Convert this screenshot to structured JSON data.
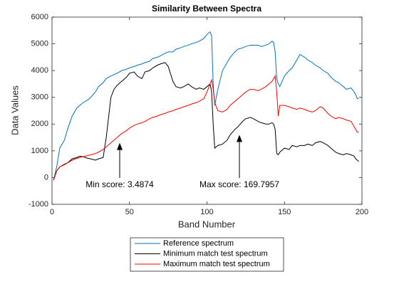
{
  "chart_data": {
    "type": "line",
    "title": "Similarity Between Spectra",
    "xlabel": "Band Number",
    "ylabel": "Data Values",
    "xlim": [
      0,
      200
    ],
    "xticks": [
      0,
      50,
      100,
      150,
      200
    ],
    "ylim": [
      -1000,
      6000
    ],
    "yticks": [
      -1000,
      0,
      1000,
      2000,
      3000,
      4000,
      5000,
      6000
    ],
    "annotations": [
      "Min score: 3.4874",
      "Max score: 169.7957"
    ],
    "x": [
      1,
      3,
      5,
      8,
      10,
      13,
      16,
      18,
      20,
      23,
      25,
      28,
      30,
      33,
      35,
      38,
      40,
      42,
      45,
      48,
      50,
      53,
      55,
      58,
      60,
      63,
      65,
      68,
      70,
      73,
      75,
      78,
      80,
      83,
      85,
      88,
      90,
      93,
      95,
      98,
      100,
      102,
      103,
      104,
      105,
      107,
      110,
      113,
      115,
      118,
      120,
      123,
      125,
      128,
      130,
      133,
      135,
      138,
      140,
      142,
      143,
      144,
      145,
      146,
      147,
      150,
      153,
      155,
      158,
      160,
      163,
      165,
      168,
      170,
      173,
      175,
      178,
      180,
      183,
      185,
      188,
      190,
      193,
      195,
      196,
      197,
      198
    ],
    "series": [
      {
        "name": "Reference spectrum",
        "color": "#0072bd",
        "values": [
          -100,
          400,
          1100,
          1400,
          1800,
          2300,
          2600,
          2700,
          2800,
          2900,
          3000,
          3200,
          3400,
          3550,
          3700,
          3800,
          3850,
          3900,
          4000,
          4050,
          4100,
          4150,
          4200,
          4250,
          4300,
          4350,
          4450,
          4500,
          4550,
          4650,
          4700,
          4700,
          4800,
          4850,
          4900,
          4950,
          5000,
          5050,
          5100,
          5200,
          5350,
          5450,
          5300,
          3500,
          2700,
          3300,
          4000,
          4300,
          4500,
          4700,
          4800,
          4850,
          4900,
          4950,
          4950,
          4950,
          4900,
          4950,
          5000,
          5100,
          5050,
          4700,
          3700,
          3500,
          3400,
          3800,
          4000,
          4100,
          4400,
          4600,
          4500,
          4400,
          4300,
          4200,
          4100,
          4000,
          3900,
          3750,
          3600,
          3550,
          3400,
          3300,
          3350,
          3200,
          3100,
          2950,
          2950
        ]
      },
      {
        "name": "Minimum match test spectrum",
        "color": "#000000",
        "values": [
          -100,
          250,
          400,
          500,
          550,
          700,
          750,
          800,
          780,
          720,
          700,
          650,
          700,
          750,
          1500,
          3000,
          3300,
          3450,
          3600,
          3750,
          3900,
          3950,
          3800,
          3700,
          3950,
          4000,
          4100,
          4200,
          4250,
          4300,
          4150,
          3600,
          3400,
          3350,
          3400,
          3500,
          3400,
          3300,
          3350,
          3300,
          3400,
          3500,
          3200,
          2000,
          1100,
          1200,
          1250,
          1400,
          1600,
          1800,
          1900,
          2100,
          2200,
          2250,
          2200,
          2100,
          2050,
          2000,
          2000,
          2050,
          2000,
          1800,
          900,
          850,
          950,
          1100,
          1050,
          1200,
          1150,
          1200,
          1200,
          1250,
          1200,
          1300,
          1350,
          1300,
          1200,
          1100,
          950,
          900,
          850,
          900,
          850,
          800,
          700,
          650,
          600
        ]
      },
      {
        "name": "Maximum match test spectrum",
        "color": "#ff0000",
        "values": [
          -100,
          250,
          400,
          480,
          550,
          650,
          720,
          750,
          780,
          820,
          850,
          900,
          950,
          1050,
          1150,
          1300,
          1400,
          1500,
          1650,
          1750,
          1850,
          1950,
          2000,
          2050,
          2100,
          2200,
          2250,
          2300,
          2350,
          2400,
          2450,
          2500,
          2550,
          2600,
          2650,
          2700,
          2750,
          2800,
          2850,
          2950,
          3200,
          3500,
          3650,
          3300,
          2800,
          2500,
          2450,
          2550,
          2700,
          2850,
          2950,
          3100,
          3200,
          3300,
          3300,
          3250,
          3300,
          3400,
          3500,
          3600,
          3700,
          3800,
          3200,
          2300,
          2700,
          2700,
          2650,
          2600,
          2550,
          2600,
          2550,
          2500,
          2450,
          2500,
          2650,
          2600,
          2400,
          2300,
          2200,
          2250,
          2200,
          2150,
          2100,
          1900,
          1800,
          1700,
          1700
        ]
      }
    ]
  }
}
